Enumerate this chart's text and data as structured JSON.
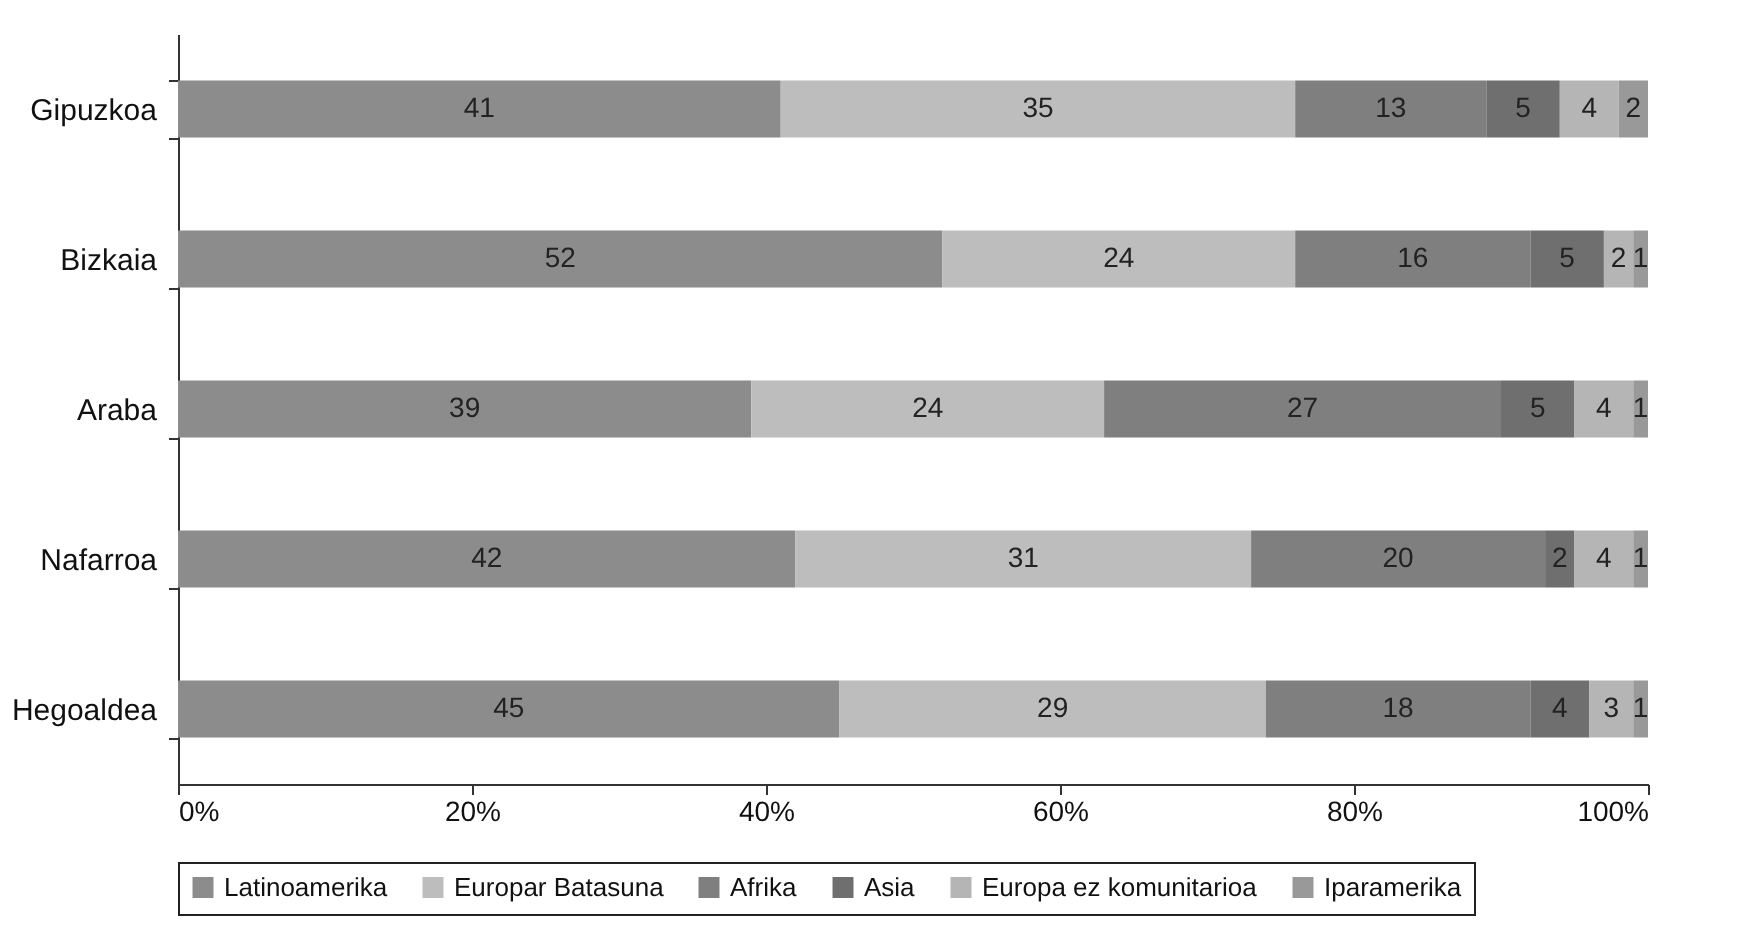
{
  "chart_data": {
    "type": "bar",
    "orientation": "horizontal",
    "stacked": true,
    "data_labels": true,
    "legend": "bottom",
    "grid": false,
    "categories": [
      "Gipuzkoa",
      "Bizkaia",
      "Araba",
      "Nafarroa",
      "Hegoaldea"
    ],
    "xlim": [
      0,
      100
    ],
    "xticks": [
      {
        "value": 0,
        "label": "0%"
      },
      {
        "value": 20,
        "label": "20%"
      },
      {
        "value": 40,
        "label": "40%"
      },
      {
        "value": 60,
        "label": "60%"
      },
      {
        "value": 80,
        "label": "80%"
      },
      {
        "value": 100,
        "label": "100%"
      }
    ],
    "series": [
      {
        "name": "Latinoamerika",
        "color": "#8c8c8c",
        "values": [
          41,
          52,
          39,
          42,
          45
        ]
      },
      {
        "name": "Europar Batasuna",
        "color": "#bdbdbd",
        "values": [
          35,
          24,
          24,
          31,
          29
        ]
      },
      {
        "name": "Afrika",
        "color": "#7f7f7f",
        "values": [
          13,
          16,
          27,
          20,
          18
        ]
      },
      {
        "name": "Asia",
        "color": "#6f6f6f",
        "values": [
          5,
          5,
          5,
          2,
          4
        ]
      },
      {
        "name": "Europa ez komunitarioa",
        "color": "#b5b5b5",
        "values": [
          4,
          2,
          4,
          4,
          3
        ]
      },
      {
        "name": "Iparamerika",
        "color": "#999999",
        "values": [
          2,
          1,
          1,
          1,
          1
        ]
      }
    ]
  }
}
